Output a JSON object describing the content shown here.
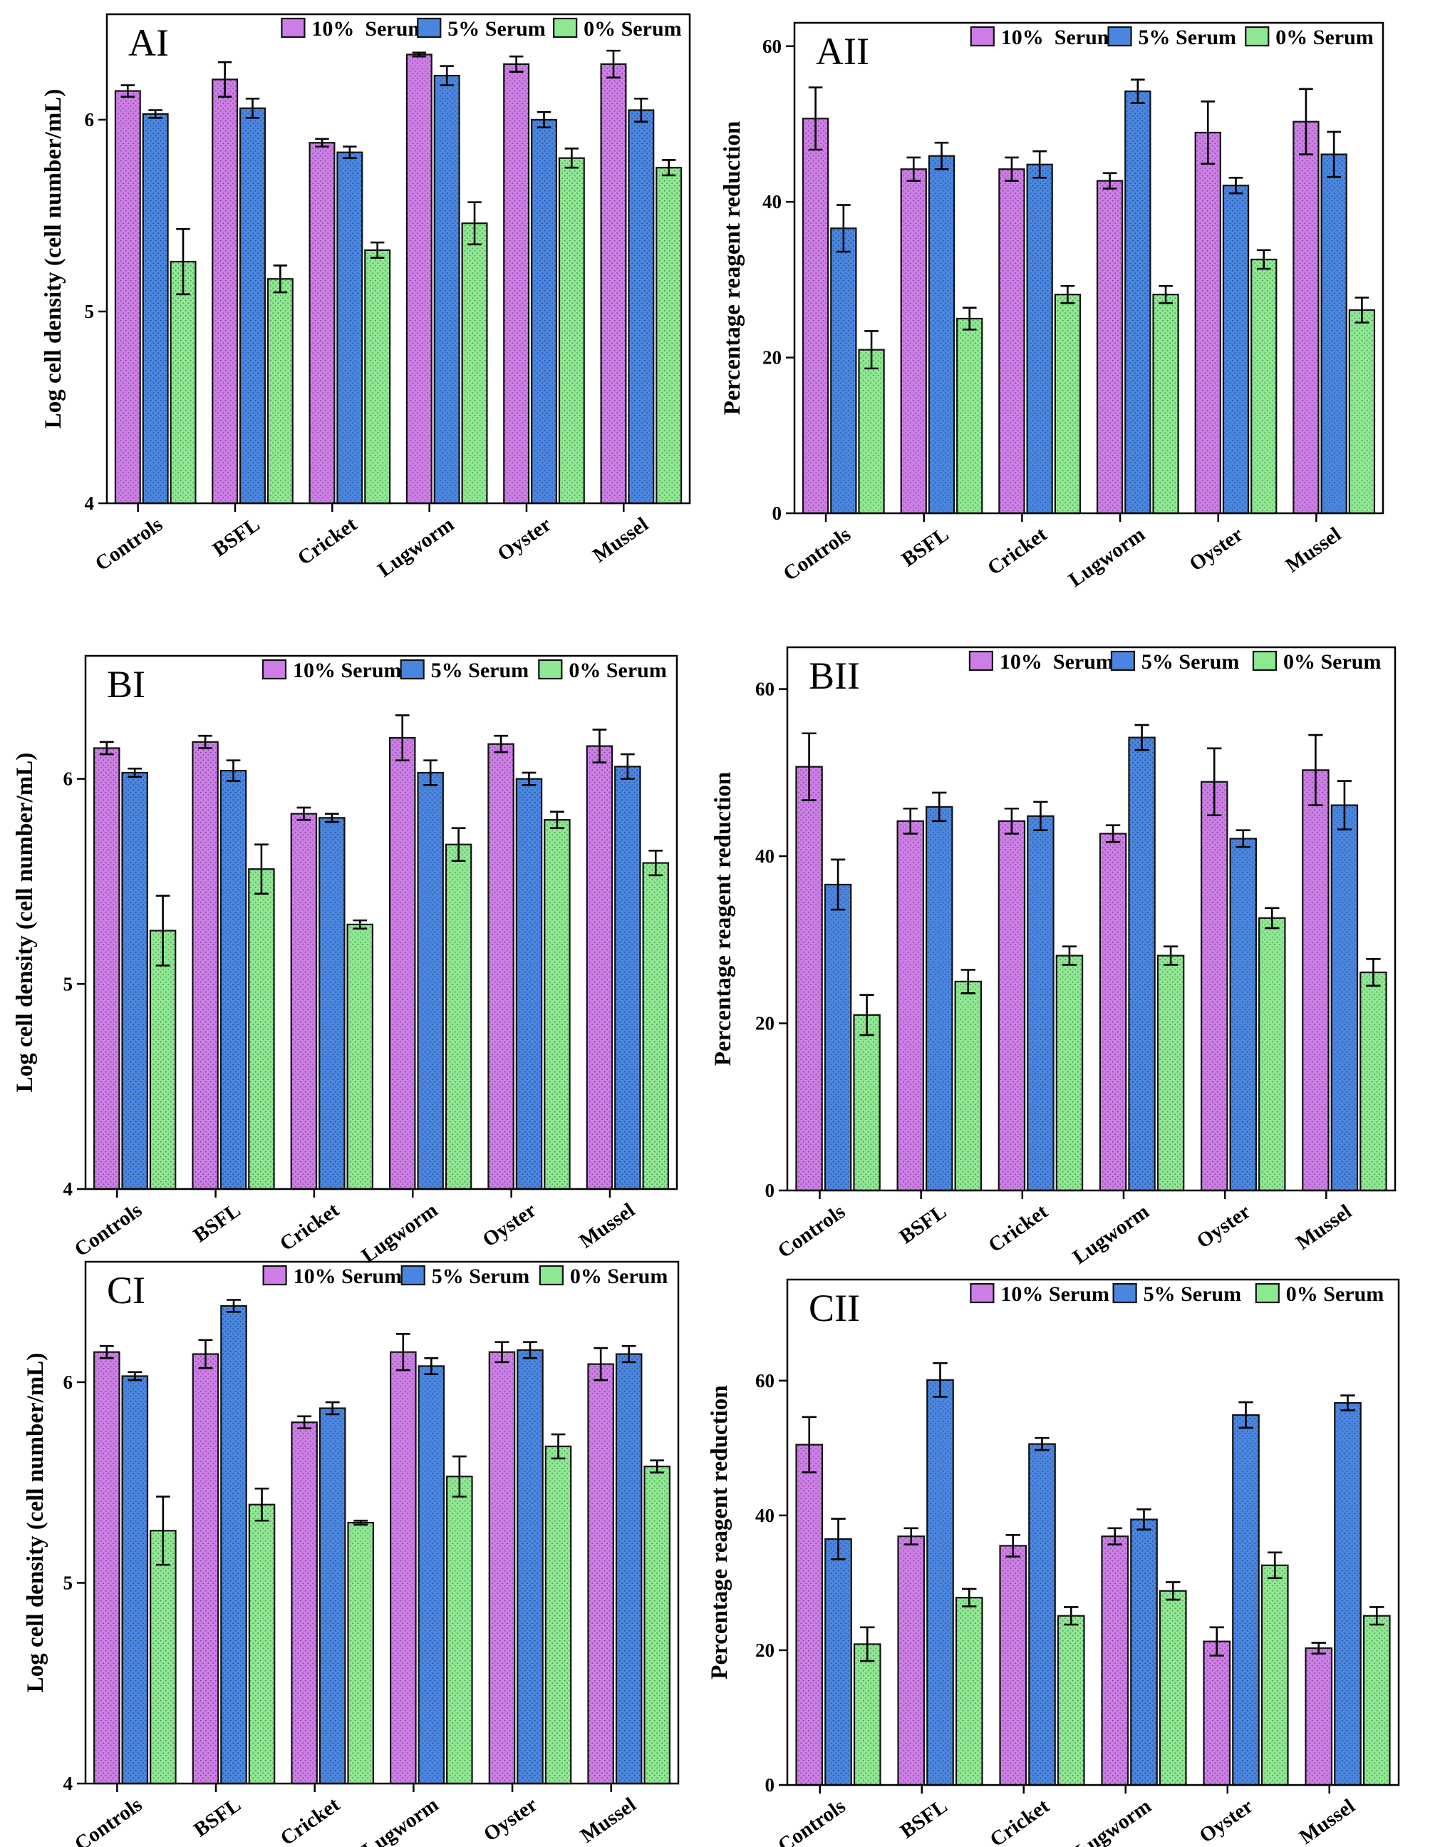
{
  "colors": {
    "serum10": "#cd7ee6",
    "serum5": "#4a86e0",
    "serum0": "#8ee892",
    "axis": "#000000"
  },
  "chart_data": [
    {
      "id": "AI",
      "type": "bar",
      "panel_label": "AI",
      "ylabel": "Log cell density (cell number/mL)",
      "ylim": [
        4,
        6.55
      ],
      "yticks": [
        4,
        5,
        6
      ],
      "categories": [
        "Controls",
        "BSFL",
        "Cricket",
        "Lugworm",
        "Oyster",
        "Mussel"
      ],
      "category_display": [
        "Controls",
        "BSFL",
        "Cricket",
        "Lugworm",
        "Oyster",
        "Mussel"
      ],
      "legend": [
        "10%  Serum",
        "5% Serum",
        "0% Serum"
      ],
      "series": [
        {
          "name": "10% Serum",
          "values": [
            6.15,
            6.21,
            5.88,
            6.34,
            6.29,
            6.29
          ],
          "errors": [
            0.03,
            0.09,
            0.02,
            0.01,
            0.04,
            0.07
          ]
        },
        {
          "name": "5% Serum",
          "values": [
            6.03,
            6.06,
            5.83,
            6.23,
            6.0,
            6.05
          ],
          "errors": [
            0.02,
            0.05,
            0.03,
            0.05,
            0.04,
            0.06
          ]
        },
        {
          "name": "0% Serum",
          "values": [
            5.26,
            5.17,
            5.32,
            5.46,
            5.8,
            5.75
          ],
          "errors": [
            0.17,
            0.07,
            0.04,
            0.11,
            0.05,
            0.04
          ]
        }
      ]
    },
    {
      "id": "AII",
      "type": "bar",
      "panel_label": "AII",
      "ylabel": "Percentage reagent reduction",
      "ylim": [
        0,
        63
      ],
      "yticks": [
        0,
        20,
        40,
        60
      ],
      "categories": [
        "Controls",
        "BSFL",
        "Cricket",
        "Lugworm",
        "Oyster",
        "Mussel"
      ],
      "category_display": [
        "Controls",
        "BSFL",
        "Cricket",
        "Lugworm",
        "Oyster",
        "Mussel"
      ],
      "legend": [
        "10%  Serum",
        "5% Serum",
        "0% Serum"
      ],
      "series": [
        {
          "name": "10% Serum",
          "values": [
            50.7,
            44.2,
            44.2,
            42.7,
            48.9,
            50.3
          ],
          "errors": [
            4.0,
            1.5,
            1.5,
            1.0,
            4.0,
            4.2
          ]
        },
        {
          "name": "5% Serum",
          "values": [
            36.6,
            45.9,
            44.8,
            54.2,
            42.1,
            46.1
          ],
          "errors": [
            3.0,
            1.7,
            1.7,
            1.5,
            1.0,
            2.9
          ]
        },
        {
          "name": "0% Serum",
          "values": [
            21.0,
            25.0,
            28.1,
            28.1,
            32.6,
            26.1
          ],
          "errors": [
            2.4,
            1.4,
            1.1,
            1.1,
            1.2,
            1.6
          ]
        }
      ]
    },
    {
      "id": "BI",
      "type": "bar",
      "panel_label": "BI",
      "ylabel": "Log cell density (cell number/mL)",
      "ylim": [
        4,
        6.6
      ],
      "yticks": [
        4,
        5,
        6
      ],
      "categories": [
        "Controls",
        "BSFL",
        "Cricket",
        "Lugworm",
        "Oyster",
        "Mussel"
      ],
      "category_display": [
        "Controls",
        "BSFL",
        "Cricket",
        "Lugworm",
        "Oyster",
        "Mussel"
      ],
      "legend": [
        "10% Serum",
        "5% Serum",
        "0% Serum"
      ],
      "series": [
        {
          "name": "10% Serum",
          "values": [
            6.15,
            6.18,
            5.83,
            6.2,
            6.17,
            6.16
          ],
          "errors": [
            0.03,
            0.03,
            0.03,
            0.11,
            0.04,
            0.08
          ]
        },
        {
          "name": "5% Serum",
          "values": [
            6.03,
            6.04,
            5.81,
            6.03,
            6.0,
            6.06
          ],
          "errors": [
            0.02,
            0.05,
            0.02,
            0.06,
            0.03,
            0.06
          ]
        },
        {
          "name": "0% Serum",
          "values": [
            5.26,
            5.56,
            5.29,
            5.68,
            5.8,
            5.59
          ],
          "errors": [
            0.17,
            0.12,
            0.02,
            0.08,
            0.04,
            0.06
          ]
        }
      ]
    },
    {
      "id": "BII",
      "type": "bar",
      "panel_label": "BII",
      "ylabel": "Percentage reagent reduction",
      "ylim": [
        0,
        65
      ],
      "yticks": [
        0,
        20,
        40,
        60
      ],
      "categories": [
        "Controls",
        "BSFL",
        "Cricket",
        "Lugworm",
        "Oyster",
        "Mussel"
      ],
      "category_display": [
        "Controls",
        "BSFL",
        "Cricket",
        "Lugworm",
        "Oyster",
        "Mussel"
      ],
      "legend": [
        "10%  Serum",
        "5% Serum",
        "0% Serum"
      ],
      "series": [
        {
          "name": "10% Serum",
          "values": [
            50.7,
            44.2,
            44.2,
            42.7,
            48.9,
            50.3
          ],
          "errors": [
            4.0,
            1.5,
            1.5,
            1.0,
            4.0,
            4.2
          ]
        },
        {
          "name": "5% Serum",
          "values": [
            36.6,
            45.9,
            44.8,
            54.2,
            42.1,
            46.1
          ],
          "errors": [
            3.0,
            1.7,
            1.7,
            1.5,
            1.0,
            2.9
          ]
        },
        {
          "name": "0% Serum",
          "values": [
            21.0,
            25.0,
            28.1,
            28.1,
            32.6,
            26.1
          ],
          "errors": [
            2.4,
            1.4,
            1.1,
            1.1,
            1.2,
            1.6
          ]
        }
      ]
    },
    {
      "id": "CI",
      "type": "bar",
      "panel_label": "CI",
      "ylabel": "Log cell density (cell number/mL)",
      "ylim": [
        4,
        6.6
      ],
      "yticks": [
        4,
        5,
        6
      ],
      "categories": [
        "Controls",
        "BSFL",
        "Cricket",
        "Lugworm",
        "Oyster",
        "Mussel"
      ],
      "category_display": [
        "Controls",
        "BSFL",
        "Cricket",
        "Lugworm",
        "Oyster",
        "Mussel"
      ],
      "legend": [
        "10% Serum",
        "5% Serum",
        "0% Serum"
      ],
      "series": [
        {
          "name": "10% Serum",
          "values": [
            6.15,
            6.14,
            5.8,
            6.15,
            6.15,
            6.09
          ],
          "errors": [
            0.03,
            0.07,
            0.03,
            0.09,
            0.05,
            0.08
          ]
        },
        {
          "name": "5% Serum",
          "values": [
            6.03,
            6.38,
            5.87,
            6.08,
            6.16,
            6.14
          ],
          "errors": [
            0.02,
            0.03,
            0.03,
            0.04,
            0.04,
            0.04
          ]
        },
        {
          "name": "0% Serum",
          "values": [
            5.26,
            5.39,
            5.3,
            5.53,
            5.68,
            5.58
          ],
          "errors": [
            0.17,
            0.08,
            0.01,
            0.1,
            0.06,
            0.03
          ]
        }
      ]
    },
    {
      "id": "CII",
      "type": "bar",
      "panel_label": "CII",
      "ylabel": "Percentage reagent reduction",
      "ylim": [
        0,
        75
      ],
      "yticks": [
        0,
        20,
        40,
        60
      ],
      "categories": [
        "Controls",
        "BSFL",
        "Cricket",
        "Lugworm",
        "Oyster",
        "Mussel"
      ],
      "category_display": [
        "Controls",
        "BSFL",
        "Cricket",
        "Lugworm",
        "Oyster",
        "Mussel"
      ],
      "legend": [
        "10% Serum",
        "5% Serum",
        "0% Serum"
      ],
      "series": [
        {
          "name": "10% Serum",
          "values": [
            50.5,
            36.9,
            35.5,
            36.9,
            21.3,
            20.3
          ],
          "errors": [
            4.1,
            1.2,
            1.6,
            1.2,
            2.1,
            0.8
          ]
        },
        {
          "name": "5% Serum",
          "values": [
            36.5,
            60.1,
            50.6,
            39.4,
            54.9,
            56.7
          ],
          "errors": [
            3.0,
            2.5,
            0.9,
            1.5,
            1.9,
            1.1
          ]
        },
        {
          "name": "0% Serum",
          "values": [
            20.9,
            27.8,
            25.1,
            28.8,
            32.6,
            25.1
          ],
          "errors": [
            2.5,
            1.3,
            1.3,
            1.3,
            1.9,
            1.3
          ]
        }
      ]
    }
  ]
}
